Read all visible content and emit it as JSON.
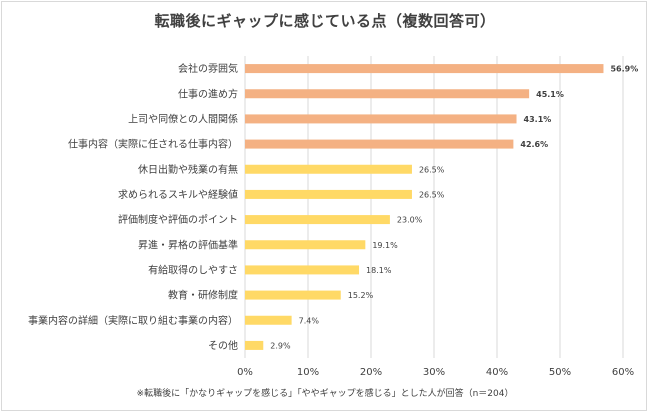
{
  "chart_data": {
    "type": "bar",
    "orientation": "horizontal",
    "title": "転職後にギャップに感じている点（複数回答可）",
    "categories": [
      "会社の雰囲気",
      "仕事の進め方",
      "上司や同僚との人間関係",
      "仕事内容（実際に任される仕事内容）",
      "休日出勤や残業の有無",
      "求められるスキルや経験値",
      "評価制度や評価のポイント",
      "昇進・昇格の評価基準",
      "有給取得のしやすさ",
      "教育・研修制度",
      "事業内容の詳細（実際に取り組む事業の内容）",
      "その他"
    ],
    "values": [
      56.9,
      45.1,
      43.1,
      42.6,
      26.5,
      26.5,
      23.0,
      19.1,
      18.1,
      15.2,
      7.4,
      2.9
    ],
    "value_labels": [
      "56.9%",
      "45.1%",
      "43.1%",
      "42.6%",
      "26.5%",
      "26.5%",
      "23.0%",
      "19.1%",
      "18.1%",
      "15.2%",
      "7.4%",
      "2.9%"
    ],
    "highlight_count": 4,
    "xlim": [
      0,
      60
    ],
    "xticks": [
      0,
      10,
      20,
      30,
      40,
      50,
      60
    ],
    "xtick_labels": [
      "0%",
      "10%",
      "20%",
      "30%",
      "40%",
      "50%",
      "60%"
    ],
    "grid": "vertical",
    "colors": {
      "highlight": "#f4b183",
      "normal": "#ffd966",
      "grid": "#d9d9d9",
      "text": "#404040"
    },
    "footnote": "※転職後に「かなりギャップを感じる」「ややギャップを感じる」とした人が回答（n＝204）"
  }
}
